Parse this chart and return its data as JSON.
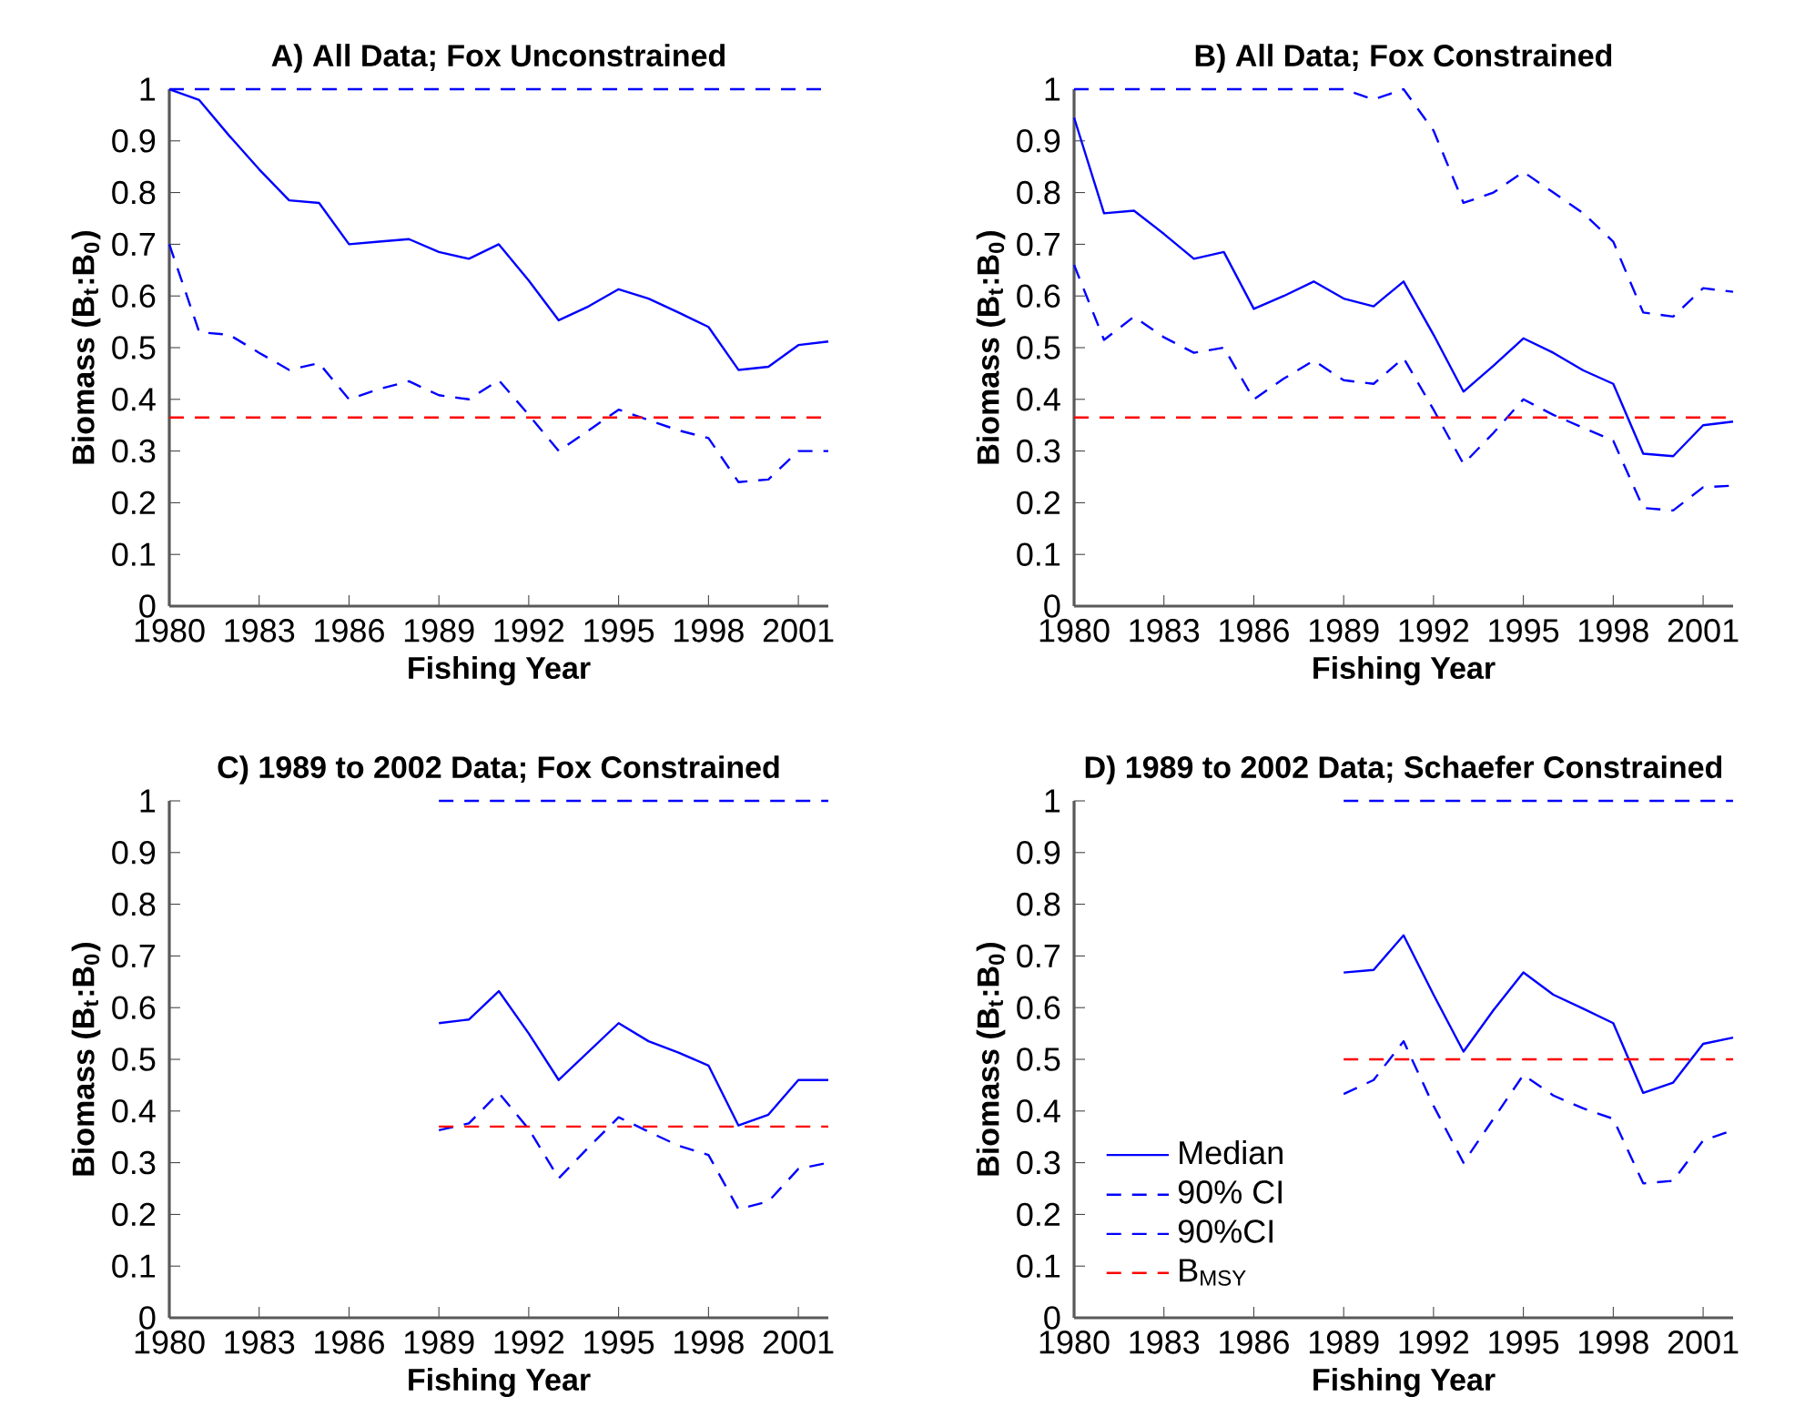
{
  "chart_data": [
    {
      "type": "line",
      "title": "A) All Data; Fox Unconstrained",
      "xlabel": "Fishing Year",
      "ylabel": "Biomass (B$_{t}$:B$_{0}$)",
      "xlim": [
        1980,
        2002
      ],
      "ylim": [
        0,
        1
      ],
      "xticks": [
        1980,
        1983,
        1986,
        1989,
        1992,
        1995,
        1998,
        2001
      ],
      "yticks": [
        0,
        0.1,
        0.2,
        0.3,
        0.4,
        0.5,
        0.6,
        0.7,
        0.8,
        0.9,
        1
      ],
      "series": [
        {
          "color": "#0000ff",
          "line_style": "solid",
          "x": [
            1980,
            1981,
            1982,
            1983,
            1984,
            1985,
            1986,
            1987,
            1988,
            1989,
            1990,
            1991,
            1992,
            1993,
            1994,
            1995,
            1996,
            1997,
            1998,
            1999,
            2000,
            2001,
            2002
          ],
          "values": [
            1.0,
            0.979,
            0.91,
            0.845,
            0.785,
            0.78,
            0.7,
            0.705,
            0.71,
            0.685,
            0.672,
            0.7,
            0.63,
            0.553,
            0.58,
            0.613,
            0.595,
            0.568,
            0.54,
            0.457,
            0.463,
            0.505,
            0.512
          ]
        },
        {
          "color": "#0000ff",
          "line_style": "dashed",
          "x": [
            1980,
            1981,
            1982,
            1983,
            1984,
            1985,
            1986,
            1987,
            1988,
            1989,
            1990,
            1991,
            1992,
            1993,
            1994,
            1995,
            1996,
            1997,
            1998,
            1999,
            2000,
            2001,
            2002
          ],
          "values": [
            1,
            1,
            1,
            1,
            1,
            1,
            1,
            1,
            1,
            1,
            1,
            1,
            1,
            1,
            1,
            1,
            1,
            1,
            1,
            1,
            1,
            1,
            1
          ]
        },
        {
          "color": "#0000ff",
          "line_style": "dashed",
          "x": [
            1980,
            1981,
            1982,
            1983,
            1984,
            1985,
            1986,
            1987,
            1988,
            1989,
            1990,
            1991,
            1992,
            1993,
            1994,
            1995,
            1996,
            1997,
            1998,
            1999,
            2000,
            2001,
            2002
          ],
          "values": [
            0.7,
            0.53,
            0.525,
            0.49,
            0.457,
            0.47,
            0.4,
            0.42,
            0.435,
            0.408,
            0.4,
            0.437,
            0.37,
            0.3,
            0.34,
            0.38,
            0.36,
            0.34,
            0.325,
            0.24,
            0.245,
            0.3,
            0.3
          ]
        },
        {
          "color": "#ff0000",
          "line_style": "dashed",
          "x": [
            1980,
            2002
          ],
          "values": [
            0.365,
            0.365
          ]
        }
      ]
    },
    {
      "type": "line",
      "title": "B) All Data; Fox Constrained",
      "xlabel": "Fishing Year",
      "ylabel": "Biomass (B$_{t}$:B$_{0}$)",
      "xlim": [
        1980,
        2002
      ],
      "ylim": [
        0,
        1
      ],
      "xticks": [
        1980,
        1983,
        1986,
        1989,
        1992,
        1995,
        1998,
        2001
      ],
      "yticks": [
        0,
        0.1,
        0.2,
        0.3,
        0.4,
        0.5,
        0.6,
        0.7,
        0.8,
        0.9,
        1
      ],
      "series": [
        {
          "color": "#0000ff",
          "line_style": "solid",
          "x": [
            1980,
            1981,
            1982,
            1983,
            1984,
            1985,
            1986,
            1987,
            1988,
            1989,
            1990,
            1991,
            1992,
            1993,
            1994,
            1995,
            1996,
            1997,
            1998,
            1999,
            2000,
            2001,
            2002
          ],
          "values": [
            0.945,
            0.76,
            0.765,
            0.72,
            0.672,
            0.685,
            0.575,
            0.6,
            0.628,
            0.595,
            0.58,
            0.628,
            0.525,
            0.415,
            0.465,
            0.518,
            0.49,
            0.456,
            0.43,
            0.295,
            0.29,
            0.35,
            0.357
          ]
        },
        {
          "color": "#0000ff",
          "line_style": "dashed",
          "x": [
            1980,
            1981,
            1982,
            1983,
            1984,
            1985,
            1986,
            1987,
            1988,
            1989,
            1990,
            1991,
            1992,
            1993,
            1994,
            1995,
            1996,
            1997,
            1998,
            1999,
            2000,
            2001,
            2002
          ],
          "values": [
            1,
            1,
            1,
            1,
            1,
            1,
            1,
            1,
            1,
            1,
            0.98,
            1.0,
            0.92,
            0.78,
            0.8,
            0.84,
            0.8,
            0.76,
            0.705,
            0.568,
            0.56,
            0.615,
            0.608
          ]
        },
        {
          "color": "#0000ff",
          "line_style": "dashed",
          "x": [
            1980,
            1981,
            1982,
            1983,
            1984,
            1985,
            1986,
            1987,
            1988,
            1989,
            1990,
            1991,
            1992,
            1993,
            1994,
            1995,
            1996,
            1997,
            1998,
            1999,
            2000,
            2001,
            2002
          ],
          "values": [
            0.66,
            0.515,
            0.56,
            0.52,
            0.49,
            0.5,
            0.4,
            0.44,
            0.475,
            0.437,
            0.43,
            0.48,
            0.38,
            0.275,
            0.335,
            0.4,
            0.37,
            0.345,
            0.32,
            0.19,
            0.185,
            0.23,
            0.233
          ]
        },
        {
          "color": "#ff0000",
          "line_style": "dashed",
          "x": [
            1980,
            2002
          ],
          "values": [
            0.365,
            0.365
          ]
        }
      ]
    },
    {
      "type": "line",
      "title": "C) 1989 to 2002 Data; Fox Constrained",
      "xlabel": "Fishing Year",
      "ylabel": "Biomass (B$_{t}$:B$_{0}$)",
      "xlim": [
        1980,
        2002
      ],
      "ylim": [
        0,
        1
      ],
      "xticks": [
        1980,
        1983,
        1986,
        1989,
        1992,
        1995,
        1998,
        2001
      ],
      "yticks": [
        0,
        0.1,
        0.2,
        0.3,
        0.4,
        0.5,
        0.6,
        0.7,
        0.8,
        0.9,
        1
      ],
      "series": [
        {
          "color": "#0000ff",
          "line_style": "solid",
          "x": [
            1989,
            1990,
            1991,
            1992,
            1993,
            1994,
            1995,
            1996,
            1997,
            1998,
            1999,
            2000,
            2001,
            2002
          ],
          "values": [
            0.57,
            0.577,
            0.632,
            0.55,
            0.46,
            0.515,
            0.57,
            0.535,
            0.513,
            0.488,
            0.372,
            0.393,
            0.46,
            0.46
          ]
        },
        {
          "color": "#0000ff",
          "line_style": "dashed",
          "x": [
            1989,
            1990,
            1991,
            1992,
            1993,
            1994,
            1995,
            1996,
            1997,
            1998,
            1999,
            2000,
            2001,
            2002
          ],
          "values": [
            1,
            1,
            1,
            1,
            1,
            1,
            1,
            1,
            1,
            1,
            1,
            1,
            1,
            1
          ]
        },
        {
          "color": "#0000ff",
          "line_style": "dashed",
          "x": [
            1989,
            1990,
            1991,
            1992,
            1993,
            1994,
            1995,
            1996,
            1997,
            1998,
            1999,
            2000,
            2001,
            2002
          ],
          "values": [
            0.363,
            0.376,
            0.435,
            0.365,
            0.27,
            0.33,
            0.388,
            0.36,
            0.333,
            0.315,
            0.21,
            0.225,
            0.288,
            0.3
          ]
        },
        {
          "color": "#ff0000",
          "line_style": "dashed",
          "x": [
            1989,
            2002
          ],
          "values": [
            0.37,
            0.37
          ]
        }
      ]
    },
    {
      "type": "line",
      "title": "D) 1989 to 2002 Data; Schaefer Constrained",
      "xlabel": "Fishing Year",
      "ylabel": "Biomass (B$_{t}$:B$_{0}$)",
      "xlim": [
        1980,
        2002
      ],
      "ylim": [
        0,
        1
      ],
      "xticks": [
        1980,
        1983,
        1986,
        1989,
        1992,
        1995,
        1998,
        2001
      ],
      "yticks": [
        0,
        0.1,
        0.2,
        0.3,
        0.4,
        0.5,
        0.6,
        0.7,
        0.8,
        0.9,
        1
      ],
      "legend": "bottom left",
      "series": [
        {
          "name": "Median",
          "color": "#0000ff",
          "line_style": "solid",
          "x": [
            1989,
            1990,
            1991,
            1992,
            1993,
            1994,
            1995,
            1996,
            1997,
            1998,
            1999,
            2000,
            2001,
            2002
          ],
          "values": [
            0.668,
            0.673,
            0.74,
            0.625,
            0.515,
            0.595,
            0.668,
            0.625,
            0.598,
            0.57,
            0.435,
            0.455,
            0.53,
            0.542
          ]
        },
        {
          "name": "90% CI",
          "color": "#0000ff",
          "line_style": "dashed",
          "x": [
            1989,
            1990,
            1991,
            1992,
            1993,
            1994,
            1995,
            1996,
            1997,
            1998,
            1999,
            2000,
            2001,
            2002
          ],
          "values": [
            1,
            1,
            1,
            1,
            1,
            1,
            1,
            1,
            1,
            1,
            1,
            1,
            1,
            1
          ]
        },
        {
          "name": "90%CI",
          "color": "#0000ff",
          "line_style": "dashed",
          "x": [
            1989,
            1990,
            1991,
            1992,
            1993,
            1994,
            1995,
            1996,
            1997,
            1998,
            1999,
            2000,
            2001,
            2002
          ],
          "values": [
            0.433,
            0.46,
            0.535,
            0.41,
            0.3,
            0.385,
            0.47,
            0.43,
            0.405,
            0.385,
            0.26,
            0.265,
            0.343,
            0.363
          ]
        },
        {
          "name": "B$_{MSY}$",
          "color": "#ff0000",
          "line_style": "dashed",
          "x": [
            1989,
            2002
          ],
          "values": [
            0.5,
            0.5
          ]
        }
      ]
    }
  ]
}
